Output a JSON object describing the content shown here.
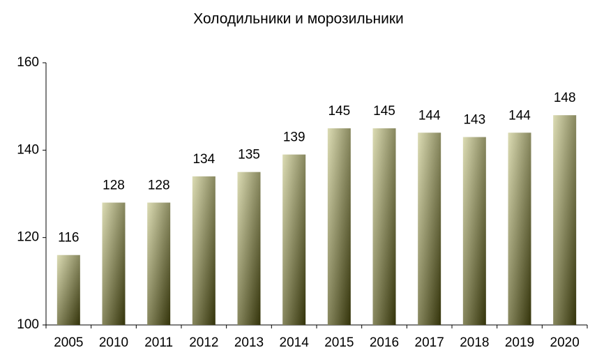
{
  "chart_data": {
    "type": "bar",
    "title": "Холодильники и морозильники",
    "categories": [
      "2005",
      "2010",
      "2011",
      "2012",
      "2013",
      "2014",
      "2015",
      "2016",
      "2017",
      "2018",
      "2019",
      "2020"
    ],
    "values": [
      116,
      128,
      128,
      134,
      135,
      139,
      145,
      145,
      144,
      143,
      144,
      148
    ],
    "color": "#dcdcb4",
    "ylim": [
      100,
      160
    ],
    "yticks": [
      100,
      120,
      140,
      160
    ],
    "grid": false
  }
}
